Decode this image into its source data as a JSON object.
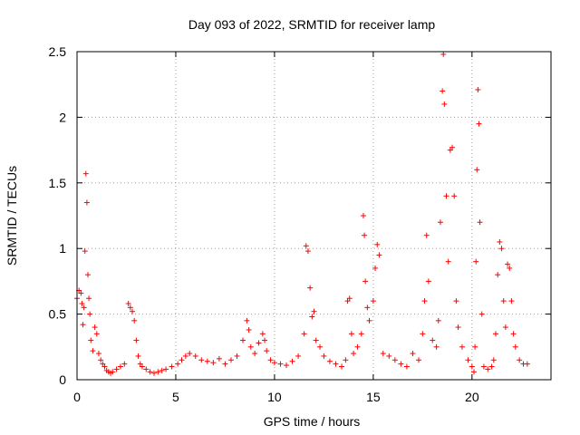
{
  "chart_data": {
    "type": "scatter",
    "title": "Day 093 of 2022, SRMTID for receiver lamp",
    "xlabel": "GPS time / hours",
    "ylabel": "SRMTID / TECUs",
    "xlim": [
      0,
      24
    ],
    "ylim": [
      0,
      2.5
    ],
    "x_ticks": [
      0,
      5,
      10,
      15,
      20
    ],
    "x_tick_labels": [
      "0",
      "5",
      "10",
      "15",
      "20"
    ],
    "y_ticks": [
      0,
      0.5,
      1,
      1.5,
      2,
      2.5
    ],
    "y_tick_labels": [
      "0",
      "0.5",
      "1",
      "1.5",
      "2",
      "2.5"
    ],
    "grid": true,
    "marker": "+",
    "series": [
      {
        "name": "SRMTID",
        "color": "#ff0000",
        "x": [
          0.0,
          0.1,
          0.2,
          0.25,
          0.3,
          0.35,
          0.4,
          0.45,
          0.5,
          0.55,
          0.6,
          0.65,
          0.7,
          0.8,
          0.9,
          1.0,
          1.1,
          1.2,
          1.3,
          1.4,
          1.5,
          1.6,
          1.7,
          1.8,
          2.0,
          2.2,
          2.4,
          2.6,
          2.7,
          2.8,
          2.9,
          3.0,
          3.1,
          3.2,
          3.3,
          3.5,
          3.7,
          3.9,
          4.1,
          4.3,
          4.5,
          4.8,
          5.1,
          5.3,
          5.5,
          5.7,
          6.0,
          6.3,
          6.6,
          6.9,
          7.2,
          7.5,
          7.8,
          8.1,
          8.4,
          8.6,
          8.7,
          8.8,
          9.0,
          9.2,
          9.4,
          9.5,
          9.6,
          9.8,
          10.0,
          10.3,
          10.6,
          10.9,
          11.2,
          11.5,
          11.6,
          11.7,
          11.8,
          11.9,
          12.0,
          12.1,
          12.3,
          12.5,
          12.8,
          13.1,
          13.4,
          13.6,
          13.7,
          13.8,
          13.9,
          14.0,
          14.2,
          14.4,
          14.5,
          14.55,
          14.6,
          14.7,
          14.8,
          15.0,
          15.1,
          15.2,
          15.3,
          15.5,
          15.8,
          16.1,
          16.4,
          16.7,
          17.0,
          17.3,
          17.5,
          17.6,
          17.7,
          17.8,
          18.0,
          18.2,
          18.3,
          18.4,
          18.5,
          18.55,
          18.6,
          18.7,
          18.8,
          18.9,
          19.0,
          19.1,
          19.2,
          19.3,
          19.5,
          19.8,
          20.0,
          20.1,
          20.15,
          20.2,
          20.25,
          20.3,
          20.35,
          20.4,
          20.5,
          20.6,
          20.8,
          21.0,
          21.1,
          21.2,
          21.3,
          21.4,
          21.5,
          21.6,
          21.7,
          21.8,
          21.9,
          22.0,
          22.1,
          22.2,
          22.4,
          22.6,
          22.8
        ],
        "y": [
          0.62,
          0.68,
          0.66,
          0.58,
          0.42,
          0.55,
          0.98,
          1.57,
          1.35,
          0.8,
          0.62,
          0.5,
          0.3,
          0.22,
          0.4,
          0.35,
          0.2,
          0.15,
          0.12,
          0.1,
          0.07,
          0.06,
          0.05,
          0.06,
          0.08,
          0.1,
          0.12,
          0.58,
          0.55,
          0.52,
          0.45,
          0.3,
          0.18,
          0.12,
          0.1,
          0.08,
          0.06,
          0.05,
          0.06,
          0.07,
          0.08,
          0.1,
          0.12,
          0.15,
          0.18,
          0.2,
          0.18,
          0.15,
          0.14,
          0.13,
          0.16,
          0.12,
          0.15,
          0.18,
          0.3,
          0.45,
          0.38,
          0.25,
          0.2,
          0.28,
          0.35,
          0.3,
          0.22,
          0.15,
          0.13,
          0.12,
          0.11,
          0.14,
          0.18,
          0.35,
          1.02,
          0.98,
          0.7,
          0.48,
          0.52,
          0.3,
          0.25,
          0.18,
          0.14,
          0.12,
          0.1,
          0.15,
          0.6,
          0.62,
          0.35,
          0.2,
          0.25,
          0.35,
          1.25,
          1.1,
          0.75,
          0.55,
          0.45,
          0.6,
          0.85,
          1.03,
          0.95,
          0.2,
          0.18,
          0.15,
          0.12,
          0.1,
          0.2,
          0.15,
          0.35,
          0.6,
          1.1,
          0.75,
          0.3,
          0.25,
          0.45,
          1.2,
          2.2,
          2.48,
          2.1,
          1.4,
          0.9,
          1.75,
          1.77,
          1.4,
          0.6,
          0.4,
          0.25,
          0.15,
          0.1,
          0.06,
          0.25,
          0.9,
          1.6,
          2.21,
          1.95,
          1.2,
          0.5,
          0.1,
          0.08,
          0.1,
          0.15,
          0.35,
          0.8,
          1.05,
          1.0,
          0.6,
          0.4,
          0.88,
          0.85,
          0.6,
          0.35,
          0.25,
          0.15,
          0.12,
          0.12
        ]
      }
    ]
  }
}
